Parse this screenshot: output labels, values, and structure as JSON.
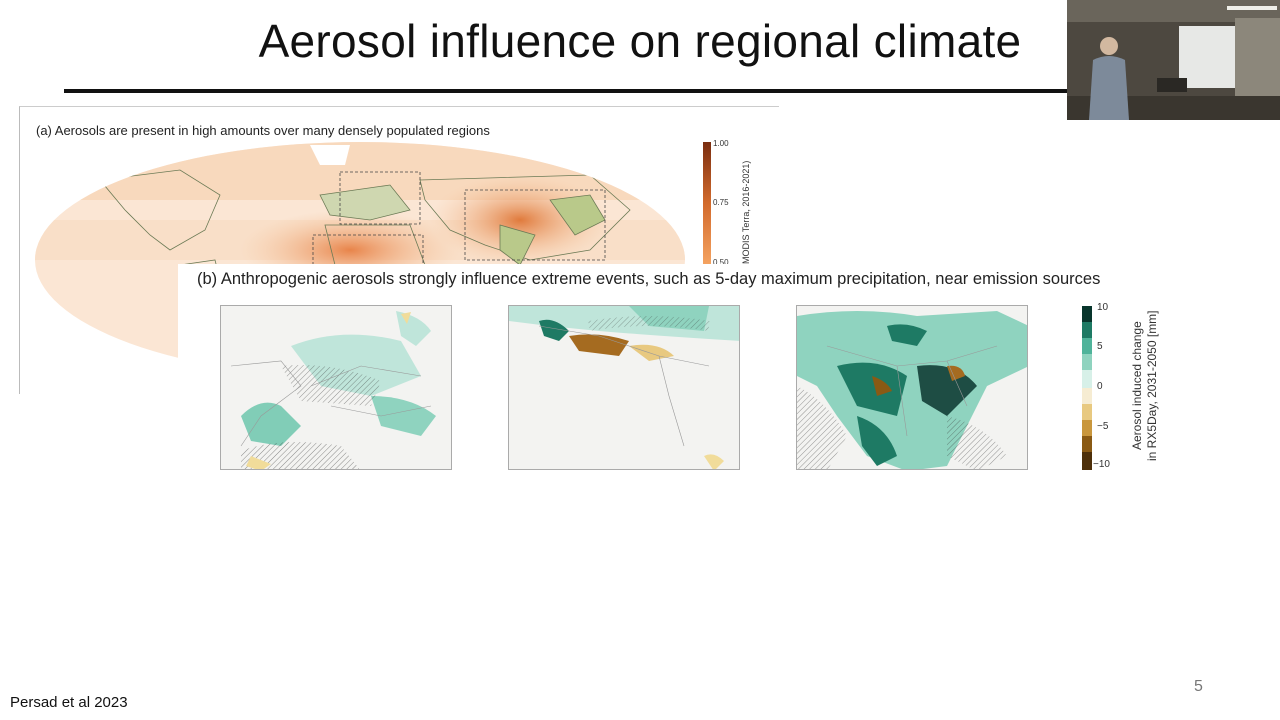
{
  "slide": {
    "title": "Aerosol influence on regional climate",
    "citation": "Persad et al 2023",
    "number": "5"
  },
  "panel_a": {
    "caption": "(a) Aerosols are present in high amounts over many densely populated regions",
    "colorbar_label": "MODIS Terra, 2016-2021)",
    "ticks": [
      "1.00",
      "0.75",
      "0.50"
    ]
  },
  "panel_b": {
    "caption": "(b) Anthropogenic aerosols strongly influence extreme events, such as 5-day maximum precipitation, near emission sources",
    "maps": [
      "europe",
      "west-africa",
      "south-east-asia"
    ],
    "colorbar_label_line1": "Aerosol induced change",
    "colorbar_label_line2": "in RX5Day, 2031-2050 [mm]",
    "ticks": [
      "10",
      "5",
      "0",
      "−5",
      "−10"
    ]
  },
  "colors": {
    "aod_low": "#fbe6d4",
    "aod_mid": "#f2a36a",
    "aod_high": "#7a2d10",
    "wet": "#1e7a64",
    "dry": "#8a5a14"
  }
}
